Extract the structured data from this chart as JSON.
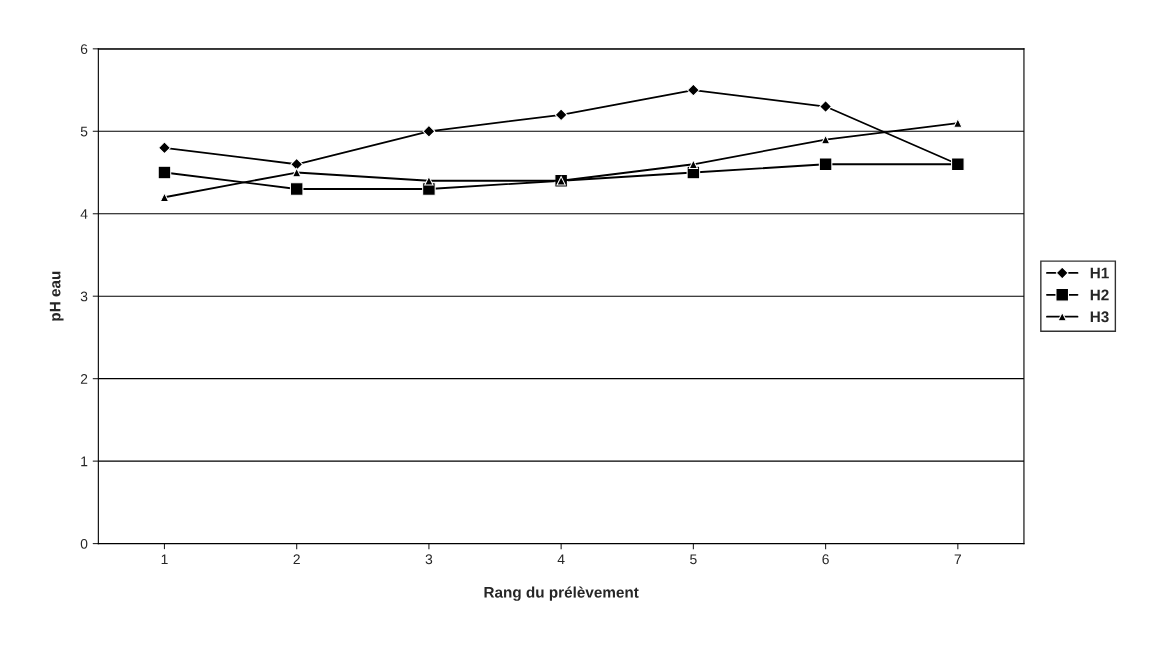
{
  "chart_data": {
    "type": "line",
    "xlabel": "Rang du prélèvement",
    "ylabel": "pH eau",
    "categories": [
      "1",
      "2",
      "3",
      "4",
      "5",
      "6",
      "7"
    ],
    "series": [
      {
        "name": "H1",
        "color": "#000000",
        "marker": "diamond",
        "values": [
          4.8,
          4.6,
          5.0,
          5.2,
          5.5,
          5.3,
          4.6
        ]
      },
      {
        "name": "H2",
        "color": "#000000",
        "marker": "square",
        "values": [
          4.5,
          4.3,
          4.3,
          4.4,
          4.5,
          4.6,
          4.6
        ]
      },
      {
        "name": "H3",
        "color": "#000000",
        "marker": "triangle",
        "values": [
          4.2,
          4.5,
          4.4,
          4.4,
          4.6,
          4.9,
          5.1
        ]
      }
    ],
    "ylim": [
      0,
      6
    ],
    "yticks": [
      0,
      1,
      2,
      3,
      4,
      5,
      6
    ],
    "grid": "y",
    "legend": "right",
    "line_style": "solid"
  }
}
